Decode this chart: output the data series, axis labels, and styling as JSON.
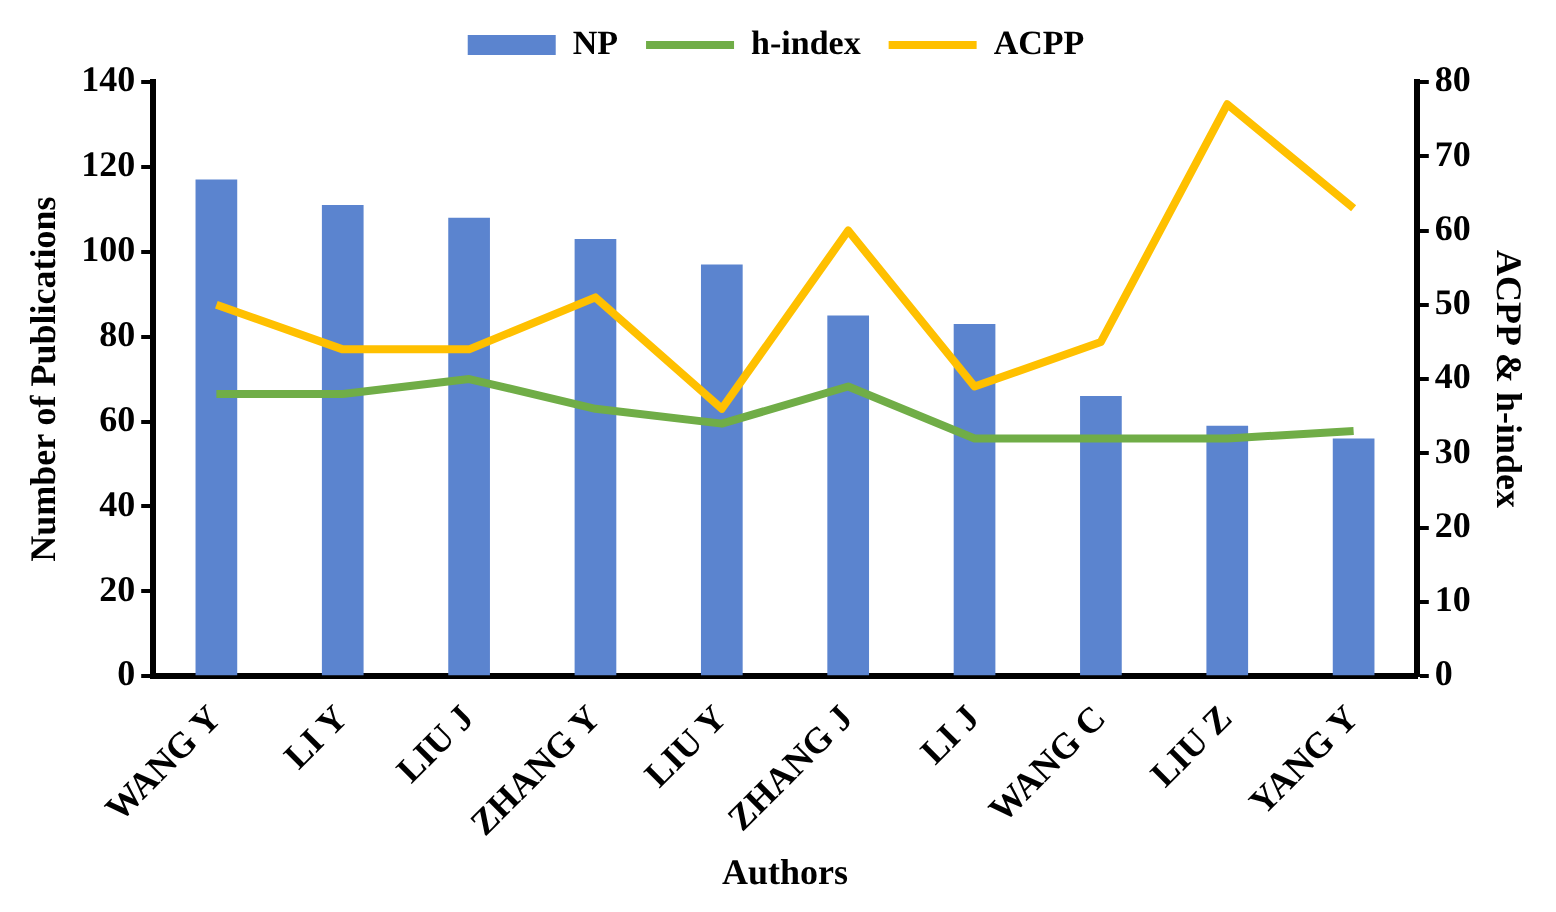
{
  "chart_data": {
    "type": "bar",
    "xlabel": "Authors",
    "ylabel": "Number of Publications",
    "y2label": "ACPP & h-index",
    "categories": [
      "WANG Y",
      "LI Y",
      "LIU J",
      "ZHANG Y",
      "LIU Y",
      "ZHANG J",
      "LI J",
      "WANG C",
      "LIU Z",
      "YANG Y"
    ],
    "series": [
      {
        "name": "NP",
        "color": "#5b84cf",
        "values": [
          117,
          111,
          108,
          103,
          97,
          85,
          83,
          66,
          59,
          56
        ]
      },
      {
        "name": "h-index",
        "type": "line",
        "axis": "y2",
        "color": "#70ad47",
        "values": [
          38,
          38,
          40,
          36,
          34,
          39,
          32,
          32,
          32,
          33
        ]
      },
      {
        "name": "ACPP",
        "type": "line",
        "axis": "y2",
        "color": "#ffc000",
        "values": [
          50,
          44,
          44,
          51,
          36,
          60,
          39,
          45,
          77,
          63
        ]
      }
    ],
    "ylim": [
      0,
      140
    ],
    "yticks": [
      0,
      20,
      40,
      60,
      80,
      100,
      120,
      140
    ],
    "y2lim": [
      0,
      80
    ],
    "y2ticks": [
      0,
      10,
      20,
      30,
      40,
      50,
      60,
      70,
      80
    ],
    "grid": false,
    "legend": "top",
    "marker": "none",
    "line_style": "solid"
  }
}
